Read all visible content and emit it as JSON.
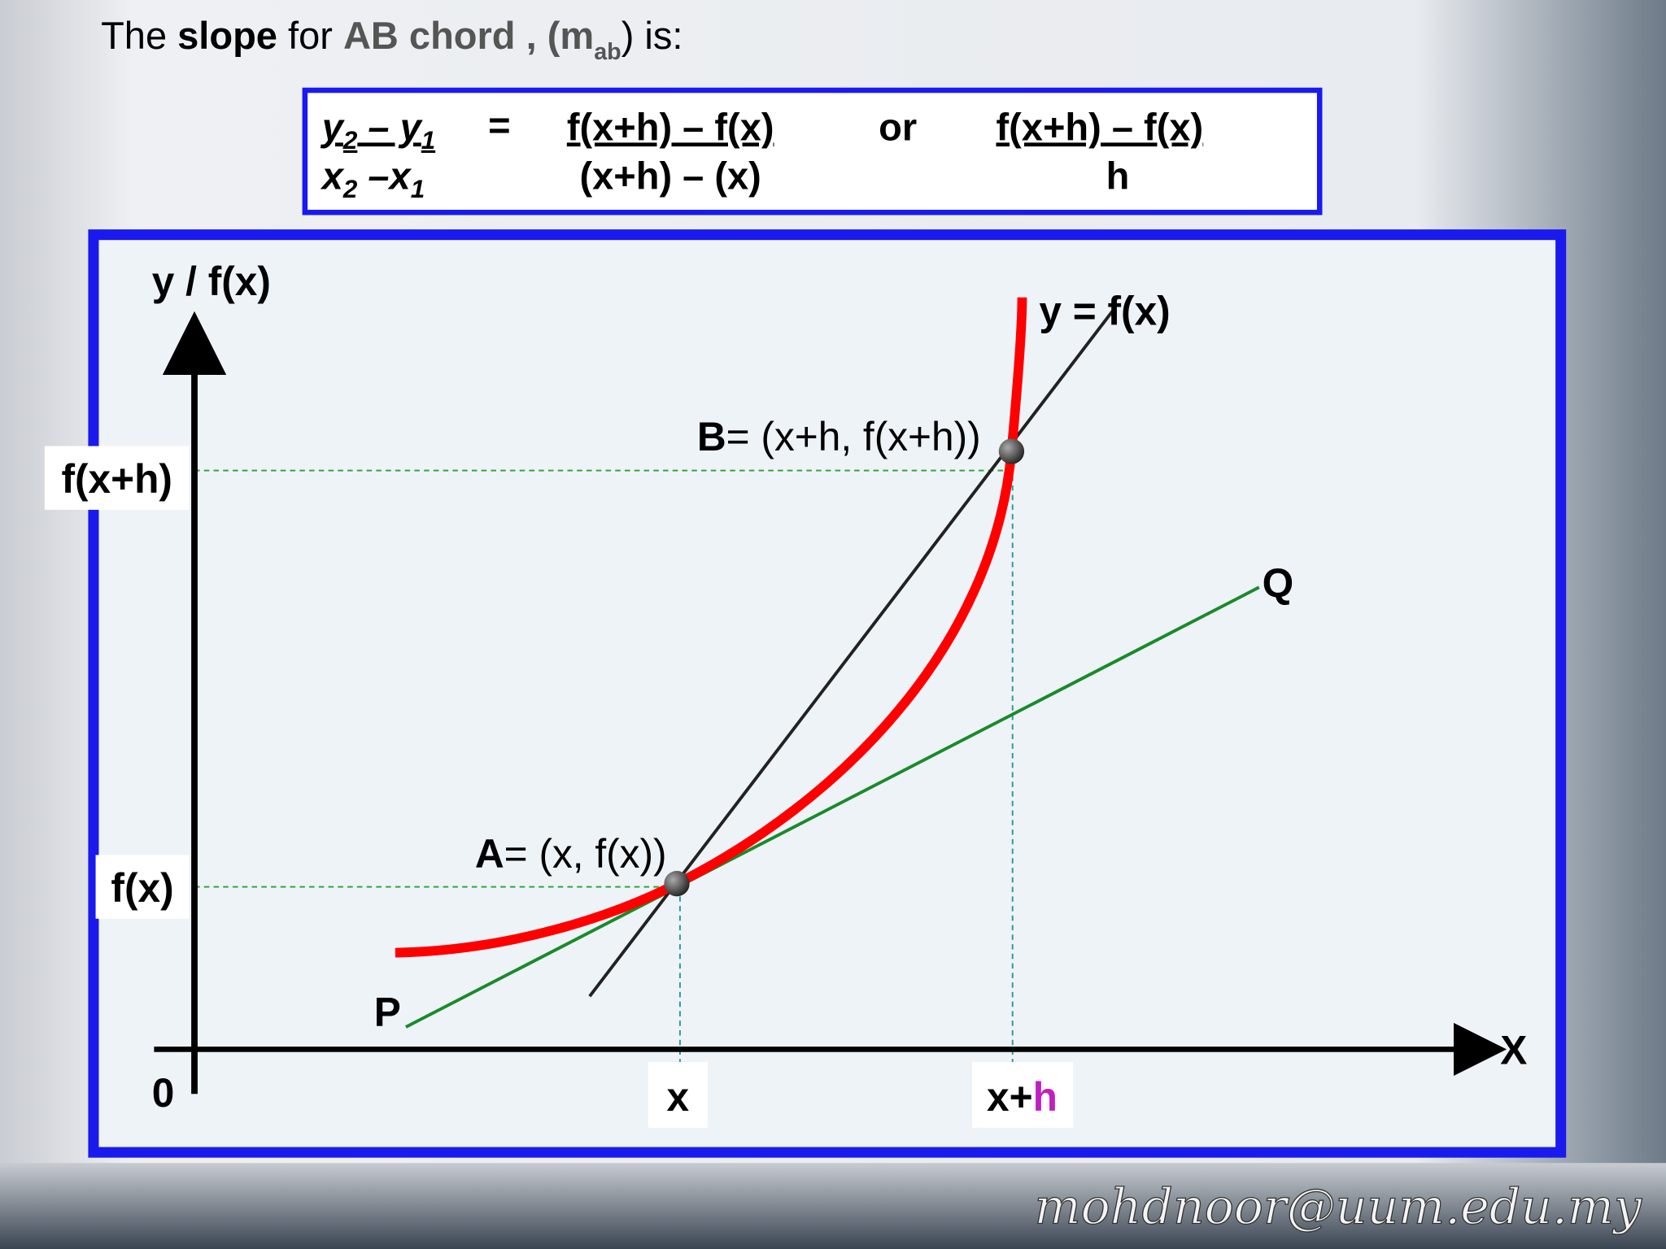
{
  "header": {
    "parts": [
      "The ",
      "slope",
      " for ",
      "AB chord",
      " , (m",
      "ab",
      ") is:"
    ]
  },
  "formula": {
    "left_numerator": [
      "y",
      "2",
      " – y",
      "1"
    ],
    "left_denominator": [
      "x",
      "2",
      " –x",
      "1"
    ],
    "equals": "=",
    "middle_numerator": "f(x+h) – f(x)",
    "middle_denominator": "(x+h) – (x)",
    "or": "or",
    "right_numerator": "f(x+h) – f(x)",
    "right_denominator": "h"
  },
  "graph": {
    "y_axis_label": "y / f(x)",
    "x_axis_label": "X",
    "origin": "0",
    "curve_label": "y = f(x)",
    "point_b": [
      "B",
      "= (x+h, f(x+h))"
    ],
    "point_a": [
      "A",
      "= (x, f(x))"
    ],
    "y_marks": [
      "f(x+h)",
      "f(x)"
    ],
    "x_marks": {
      "x": "x",
      "x_plus_h": [
        "x+",
        "h"
      ]
    },
    "tangent_end": "Q",
    "tangent_start": "P"
  },
  "footer": {
    "email": "mohdnoor@uum.edu.my"
  }
}
